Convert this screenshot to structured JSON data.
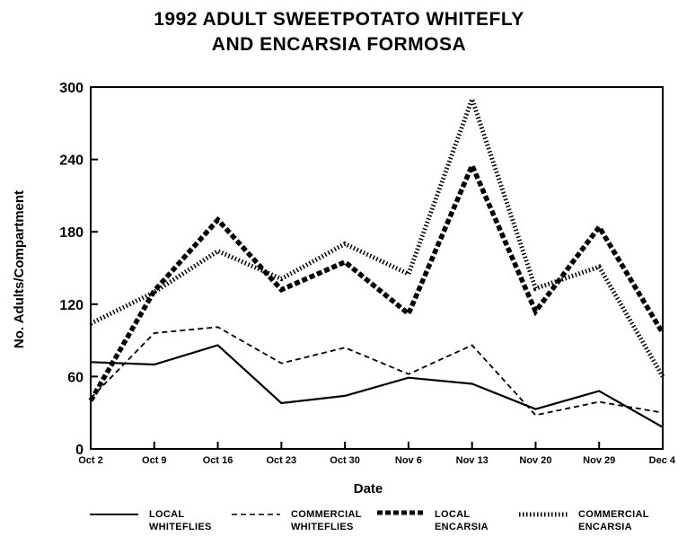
{
  "title_line1": "1992 ADULT SWEETPOTATO WHITEFLY",
  "title_line2": "AND ENCARSIA FORMOSA",
  "chart_data": {
    "type": "line",
    "title": "1992 ADULT SWEETPOTATO WHITEFLY AND ENCARSIA FORMOSA",
    "xlabel": "Date",
    "ylabel": "No. Adults/Compartment",
    "categories": [
      "Oct 2",
      "Oct 9",
      "Oct 16",
      "Oct 23",
      "Oct 30",
      "Nov 6",
      "Nov 13",
      "Nov 20",
      "Nov 29",
      "Dec 4"
    ],
    "ylim": [
      0,
      300
    ],
    "yticks": [
      0,
      60,
      120,
      180,
      240,
      300
    ],
    "grid": false,
    "legend_position": "bottom",
    "series": [
      {
        "name": "LOCAL\nWHITEFLIES",
        "style": "solid",
        "values": [
          72,
          70,
          86,
          38,
          44,
          59,
          54,
          33,
          48,
          18
        ]
      },
      {
        "name": "COMMERCIAL\nWHITEFLIES",
        "style": "dashed",
        "values": [
          42,
          96,
          101,
          71,
          84,
          62,
          86,
          28,
          39,
          30
        ]
      },
      {
        "name": "LOCAL\nENCARSIA",
        "style": "heavy-dashed",
        "values": [
          40,
          131,
          190,
          132,
          155,
          112,
          235,
          114,
          184,
          96
        ]
      },
      {
        "name": "COMMERCIAL\nENCARSIA",
        "style": "dotted",
        "values": [
          104,
          130,
          164,
          141,
          170,
          145,
          290,
          133,
          151,
          60
        ]
      }
    ]
  }
}
